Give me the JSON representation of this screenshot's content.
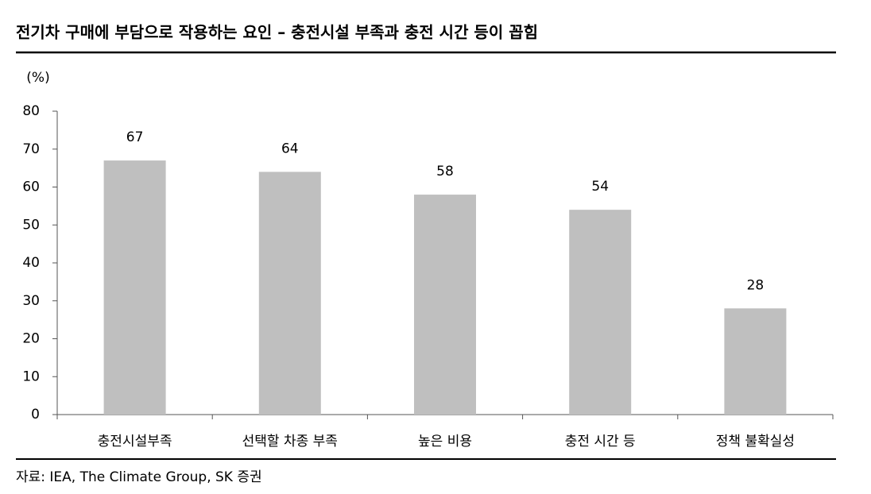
{
  "chart_data": {
    "type": "bar",
    "title": "전기차 구매에 부담으로 작용하는 요인 – 충전시설 부족과 충전 시간 등이 꼽힘",
    "y_label": "(%)",
    "categories": [
      "충전시설부족",
      "선택할 차종 부족",
      "높은 비용",
      "충전 시간 등",
      "정책 불확실성"
    ],
    "values": [
      67,
      64,
      58,
      54,
      28
    ],
    "color": "#bfbfbf",
    "ylim": [
      0,
      80
    ],
    "yticks": [
      0,
      10,
      20,
      30,
      40,
      50,
      60,
      70,
      80
    ],
    "grid": false,
    "source": "자료: IEA, The Climate Group, SK 증권"
  }
}
